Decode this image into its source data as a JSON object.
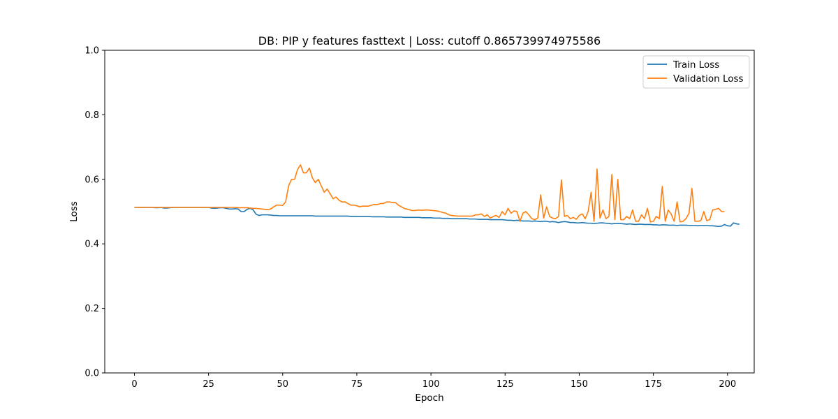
{
  "chart_data": {
    "type": "line",
    "title": "DB: PIP y features fasttext | Loss: cutoff 0.865739974975586",
    "xlabel": "Epoch",
    "ylabel": "Loss",
    "xlim": [
      -10,
      209
    ],
    "ylim": [
      0.0,
      1.0
    ],
    "xticks": [
      0,
      25,
      50,
      75,
      100,
      125,
      150,
      175,
      200
    ],
    "yticks": [
      0.0,
      0.2,
      0.4,
      0.6,
      0.8,
      1.0
    ],
    "xtick_labels": [
      "0",
      "25",
      "50",
      "75",
      "100",
      "125",
      "150",
      "175",
      "200"
    ],
    "ytick_labels": [
      "0.0",
      "0.2",
      "0.4",
      "0.6",
      "0.8",
      "1.0"
    ],
    "grid": false,
    "legend": "top-right",
    "x_start": 0,
    "x_step": 1,
    "series": [
      {
        "name": "Train Loss",
        "color": "#1f77b4",
        "values": [
          0.513,
          0.513,
          0.513,
          0.513,
          0.513,
          0.513,
          0.513,
          0.512,
          0.512,
          0.513,
          0.511,
          0.511,
          0.512,
          0.513,
          0.513,
          0.513,
          0.513,
          0.513,
          0.513,
          0.513,
          0.513,
          0.513,
          0.513,
          0.513,
          0.513,
          0.513,
          0.511,
          0.51,
          0.511,
          0.512,
          0.512,
          0.51,
          0.508,
          0.508,
          0.509,
          0.508,
          0.5,
          0.5,
          0.507,
          0.51,
          0.506,
          0.492,
          0.488,
          0.49,
          0.49,
          0.49,
          0.489,
          0.488,
          0.488,
          0.487,
          0.487,
          0.487,
          0.487,
          0.487,
          0.487,
          0.487,
          0.487,
          0.487,
          0.487,
          0.487,
          0.487,
          0.486,
          0.486,
          0.486,
          0.486,
          0.486,
          0.486,
          0.486,
          0.486,
          0.486,
          0.486,
          0.486,
          0.486,
          0.485,
          0.485,
          0.485,
          0.485,
          0.485,
          0.485,
          0.485,
          0.484,
          0.484,
          0.484,
          0.484,
          0.484,
          0.483,
          0.483,
          0.483,
          0.483,
          0.483,
          0.483,
          0.482,
          0.482,
          0.482,
          0.482,
          0.482,
          0.482,
          0.481,
          0.481,
          0.481,
          0.481,
          0.48,
          0.48,
          0.48,
          0.479,
          0.479,
          0.479,
          0.478,
          0.478,
          0.478,
          0.478,
          0.478,
          0.478,
          0.477,
          0.477,
          0.477,
          0.476,
          0.476,
          0.476,
          0.476,
          0.475,
          0.475,
          0.475,
          0.475,
          0.475,
          0.474,
          0.473,
          0.473,
          0.472,
          0.473,
          0.472,
          0.471,
          0.471,
          0.471,
          0.47,
          0.471,
          0.47,
          0.469,
          0.47,
          0.47,
          0.468,
          0.469,
          0.468,
          0.466,
          0.468,
          0.469,
          0.468,
          0.466,
          0.466,
          0.465,
          0.465,
          0.466,
          0.465,
          0.464,
          0.464,
          0.463,
          0.464,
          0.465,
          0.465,
          0.464,
          0.463,
          0.462,
          0.463,
          0.463,
          0.463,
          0.462,
          0.461,
          0.462,
          0.461,
          0.46,
          0.461,
          0.461,
          0.46,
          0.46,
          0.46,
          0.459,
          0.459,
          0.458,
          0.459,
          0.459,
          0.458,
          0.458,
          0.458,
          0.457,
          0.458,
          0.458,
          0.458,
          0.457,
          0.457,
          0.457,
          0.456,
          0.457,
          0.457,
          0.457,
          0.456,
          0.456,
          0.455,
          0.454,
          0.455,
          0.46,
          0.456,
          0.455,
          0.465,
          0.462,
          0.461
        ]
      },
      {
        "name": "Validation Loss",
        "color": "#ff7f0e",
        "values": [
          0.513,
          0.513,
          0.513,
          0.513,
          0.513,
          0.513,
          0.513,
          0.513,
          0.513,
          0.513,
          0.513,
          0.513,
          0.513,
          0.513,
          0.513,
          0.513,
          0.513,
          0.513,
          0.513,
          0.513,
          0.513,
          0.513,
          0.513,
          0.513,
          0.513,
          0.513,
          0.513,
          0.513,
          0.513,
          0.513,
          0.513,
          0.513,
          0.513,
          0.513,
          0.513,
          0.512,
          0.512,
          0.512,
          0.512,
          0.511,
          0.51,
          0.51,
          0.509,
          0.508,
          0.507,
          0.506,
          0.508,
          0.515,
          0.52,
          0.52,
          0.519,
          0.53,
          0.58,
          0.6,
          0.6,
          0.63,
          0.645,
          0.62,
          0.62,
          0.635,
          0.605,
          0.59,
          0.6,
          0.58,
          0.56,
          0.57,
          0.555,
          0.54,
          0.545,
          0.535,
          0.53,
          0.53,
          0.525,
          0.52,
          0.52,
          0.518,
          0.515,
          0.517,
          0.517,
          0.517,
          0.52,
          0.522,
          0.522,
          0.525,
          0.525,
          0.53,
          0.53,
          0.528,
          0.528,
          0.52,
          0.515,
          0.51,
          0.507,
          0.505,
          0.503,
          0.504,
          0.505,
          0.504,
          0.505,
          0.505,
          0.504,
          0.503,
          0.502,
          0.5,
          0.497,
          0.495,
          0.49,
          0.488,
          0.487,
          0.486,
          0.486,
          0.486,
          0.486,
          0.486,
          0.486,
          0.49,
          0.49,
          0.493,
          0.485,
          0.49,
          0.48,
          0.485,
          0.488,
          0.482,
          0.5,
          0.49,
          0.51,
          0.495,
          0.502,
          0.5,
          0.47,
          0.495,
          0.5,
          0.49,
          0.478,
          0.475,
          0.48,
          0.552,
          0.48,
          0.515,
          0.485,
          0.48,
          0.478,
          0.485,
          0.598,
          0.485,
          0.488,
          0.478,
          0.482,
          0.476,
          0.488,
          0.493,
          0.478,
          0.5,
          0.56,
          0.47,
          0.632,
          0.48,
          0.505,
          0.478,
          0.485,
          0.615,
          0.475,
          0.6,
          0.475,
          0.475,
          0.485,
          0.478,
          0.505,
          0.47,
          0.47,
          0.49,
          0.478,
          0.51,
          0.468,
          0.47,
          0.485,
          0.478,
          0.578,
          0.47,
          0.505,
          0.492,
          0.47,
          0.53,
          0.468,
          0.47,
          0.478,
          0.495,
          0.572,
          0.47,
          0.47,
          0.472,
          0.5,
          0.472,
          0.475,
          0.505,
          0.507,
          0.51,
          0.5,
          0.5
        ]
      }
    ]
  }
}
